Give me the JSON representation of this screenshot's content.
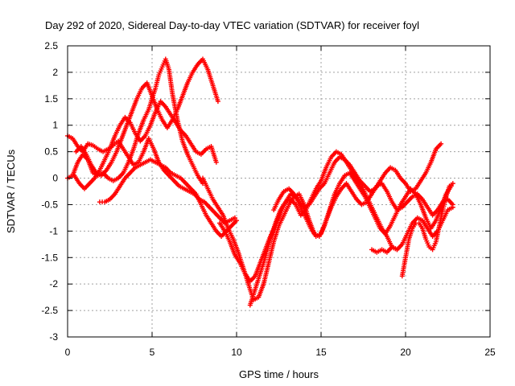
{
  "chart_data": {
    "type": "scatter",
    "title": "Day 292 of 2020, Sidereal Day-to-day VTEC variation (SDTVAR) for receiver foyl",
    "xlabel": "GPS time / hours",
    "ylabel": "SDTVAR / TECUs",
    "xlim": [
      0,
      25
    ],
    "ylim": [
      -3,
      2.5
    ],
    "x_ticks": [
      0,
      5,
      10,
      15,
      20,
      25
    ],
    "y_ticks": [
      2.5,
      2,
      1.5,
      1,
      0.5,
      0,
      -0.5,
      -1,
      -1.5,
      -2,
      -2.5,
      -3
    ],
    "x_tick_labels": [
      "0",
      "5",
      "10",
      "15",
      "20",
      "25"
    ],
    "y_tick_labels": [
      "2.5",
      "2",
      "1.5",
      "1",
      "0.5",
      "0",
      "-0.5",
      "-1",
      "-1.5",
      "-2",
      "-2.5",
      "-3"
    ],
    "grid": true,
    "marker": "plus",
    "color": "#ff0000",
    "series": [
      {
        "x": [
          0.0,
          0.3,
          0.6,
          0.9,
          1.2,
          1.5,
          1.8,
          2.1,
          2.4,
          2.7,
          3.0,
          3.3,
          3.6,
          3.9,
          4.2,
          4.5,
          4.8,
          5.1,
          5.4,
          5.7,
          6.0,
          6.3,
          6.6,
          6.9,
          7.2,
          7.5,
          7.8,
          8.1,
          8.4,
          8.7,
          9.0,
          9.3,
          9.6,
          9.9
        ],
        "y": [
          0.8,
          0.75,
          0.6,
          0.5,
          0.65,
          0.62,
          0.55,
          0.5,
          0.55,
          0.62,
          0.7,
          0.55,
          0.4,
          0.25,
          0.3,
          0.5,
          0.75,
          0.55,
          0.3,
          0.15,
          0.05,
          -0.05,
          -0.15,
          -0.2,
          -0.25,
          -0.3,
          -0.4,
          -0.45,
          -0.55,
          -0.65,
          -0.75,
          -0.85,
          -0.8,
          -0.75
        ]
      },
      {
        "x": [
          0.0,
          0.3,
          0.6,
          0.9,
          1.2,
          1.5,
          1.8,
          2.1,
          2.4,
          2.7,
          3.0,
          3.3,
          3.6,
          3.9,
          4.2,
          4.5,
          4.8,
          5.0,
          5.2,
          5.4,
          5.6,
          5.8,
          6.0,
          6.2,
          6.5,
          6.8,
          7.1,
          7.4,
          7.7,
          8.0
        ],
        "y": [
          0.0,
          0.05,
          0.3,
          0.45,
          0.35,
          0.1,
          0.05,
          0.1,
          0.0,
          -0.05,
          0.0,
          0.1,
          0.3,
          0.55,
          0.85,
          1.1,
          1.3,
          1.5,
          1.7,
          1.95,
          2.1,
          2.25,
          2.05,
          1.6,
          1.1,
          0.7,
          0.45,
          0.25,
          0.05,
          -0.1
        ]
      },
      {
        "x": [
          0.5,
          0.8,
          1.1,
          1.4,
          1.7,
          2.0,
          2.3,
          2.6,
          2.9,
          3.2,
          3.5,
          3.8,
          4.1,
          4.4,
          4.7,
          5.0,
          5.3,
          5.6,
          5.9,
          6.2,
          6.5,
          6.8,
          7.1,
          7.4,
          7.7,
          8.0,
          8.3,
          8.6,
          8.9
        ],
        "y": [
          0.5,
          0.6,
          0.45,
          0.25,
          0.1,
          0.05,
          0.15,
          0.3,
          0.5,
          0.75,
          1.0,
          1.25,
          1.5,
          1.7,
          1.8,
          1.55,
          1.3,
          1.1,
          0.95,
          1.1,
          1.3,
          1.55,
          1.8,
          2.0,
          2.15,
          2.25,
          2.05,
          1.75,
          1.45
        ]
      },
      {
        "x": [
          0.4,
          0.7,
          1.0,
          1.3,
          1.6,
          1.9,
          2.2,
          2.5,
          2.8,
          3.1,
          3.4,
          3.7,
          4.0,
          4.3,
          4.6,
          4.9,
          5.2,
          5.5,
          5.8,
          6.1,
          6.4,
          6.7,
          7.0,
          7.3,
          7.6,
          7.9,
          8.2,
          8.5,
          8.8
        ],
        "y": [
          0.05,
          -0.1,
          -0.2,
          -0.1,
          0.0,
          0.15,
          0.35,
          0.55,
          0.8,
          1.0,
          1.15,
          1.05,
          0.85,
          0.7,
          0.8,
          1.0,
          1.25,
          1.45,
          1.35,
          1.2,
          1.05,
          0.9,
          0.8,
          0.65,
          0.5,
          0.45,
          0.55,
          0.6,
          0.3
        ]
      },
      {
        "x": [
          1.9,
          2.2,
          2.5,
          2.8,
          3.1,
          3.4,
          3.7,
          4.0,
          4.3,
          4.6,
          4.9,
          5.2,
          5.5,
          5.8,
          6.1,
          6.4,
          6.7,
          7.0,
          7.3,
          7.6,
          7.9,
          8.2,
          8.5,
          8.8,
          9.1,
          9.4,
          9.7,
          10.0
        ],
        "y": [
          -0.45,
          -0.45,
          -0.4,
          -0.3,
          -0.15,
          0.0,
          0.1,
          0.2,
          0.25,
          0.3,
          0.35,
          0.3,
          0.25,
          0.2,
          0.1,
          0.05,
          0.0,
          -0.1,
          -0.2,
          -0.3,
          -0.5,
          -0.7,
          -0.85,
          -1.0,
          -1.1,
          -1.0,
          -0.9,
          -0.8
        ]
      },
      {
        "x": [
          8.0,
          8.3,
          8.6,
          8.9,
          9.2,
          9.5,
          9.8,
          10.1,
          10.4,
          10.7,
          11.0,
          11.3,
          11.6,
          11.9,
          12.2,
          12.5,
          12.8,
          13.1,
          13.4,
          13.7,
          14.0,
          14.3,
          14.6,
          14.9,
          15.2,
          15.5,
          15.8,
          16.1,
          16.4,
          16.7,
          17.0,
          17.3,
          17.6,
          17.9,
          18.2,
          18.5,
          18.8,
          19.1,
          19.4,
          19.7,
          20.0,
          20.3,
          20.6,
          20.9,
          21.2,
          21.5,
          21.8,
          22.1,
          22.4,
          22.7
        ],
        "y": [
          0.0,
          -0.2,
          -0.4,
          -0.55,
          -0.7,
          -0.95,
          -1.15,
          -1.4,
          -1.7,
          -2.0,
          -2.3,
          -2.25,
          -2.0,
          -1.6,
          -1.2,
          -0.9,
          -0.7,
          -0.5,
          -0.35,
          -0.3,
          -0.5,
          -0.8,
          -1.05,
          -1.1,
          -0.9,
          -0.6,
          -0.3,
          -0.1,
          0.05,
          0.1,
          -0.05,
          -0.2,
          -0.35,
          -0.55,
          -0.75,
          -0.95,
          -1.05,
          -0.9,
          -0.7,
          -0.5,
          -0.35,
          -0.2,
          -0.3,
          -0.5,
          -0.75,
          -0.95,
          -0.8,
          -0.55,
          -0.3,
          -0.15
        ]
      },
      {
        "x": [
          9.0,
          9.3,
          9.6,
          9.9,
          10.2,
          10.5,
          10.8,
          11.1,
          11.4,
          11.7,
          12.0,
          12.3,
          12.6,
          12.9,
          13.2,
          13.5,
          13.8,
          14.1,
          14.4,
          14.7,
          15.0,
          15.3,
          15.6,
          15.9,
          16.2,
          16.5,
          16.8,
          17.1,
          17.4,
          17.7,
          18.0,
          18.3,
          18.6,
          18.9,
          19.2,
          19.5,
          19.8,
          20.1,
          20.4,
          20.7,
          21.0,
          21.3,
          21.6,
          21.9,
          22.2,
          22.5,
          22.8
        ],
        "y": [
          -0.85,
          -1.0,
          -1.2,
          -1.45,
          -1.6,
          -1.8,
          -1.95,
          -1.85,
          -1.6,
          -1.35,
          -1.1,
          -0.9,
          -0.65,
          -0.45,
          -0.3,
          -0.35,
          -0.55,
          -0.75,
          -0.95,
          -1.1,
          -1.05,
          -0.8,
          -0.55,
          -0.35,
          -0.2,
          -0.1,
          -0.25,
          -0.4,
          -0.5,
          -0.45,
          -0.3,
          -0.15,
          -0.1,
          -0.25,
          -0.45,
          -0.6,
          -0.55,
          -0.45,
          -0.35,
          -0.3,
          -0.4,
          -0.55,
          -0.7,
          -0.6,
          -0.45,
          -0.4,
          -0.5
        ]
      },
      {
        "x": [
          10.8,
          11.1,
          11.4,
          11.7,
          12.0,
          12.3,
          12.6,
          12.9,
          13.2,
          13.5,
          13.8,
          14.1,
          14.4,
          14.7,
          15.0,
          15.3,
          15.6,
          15.9,
          16.2,
          16.5,
          16.8,
          17.1,
          17.4,
          17.7,
          18.0,
          18.3,
          18.6,
          18.9,
          19.2,
          19.5,
          19.8,
          20.1,
          20.4,
          20.7,
          21.0,
          21.3,
          21.6,
          21.9,
          22.2,
          22.5,
          22.8
        ],
        "y": [
          -2.4,
          -2.1,
          -1.8,
          -1.5,
          -1.15,
          -0.85,
          -0.6,
          -0.45,
          -0.4,
          -0.5,
          -0.7,
          -0.6,
          -0.4,
          -0.2,
          -0.05,
          0.2,
          0.4,
          0.5,
          0.45,
          0.3,
          0.15,
          0.0,
          -0.15,
          -0.35,
          -0.55,
          -0.75,
          -0.95,
          -1.1,
          -1.3,
          -1.35,
          -1.25,
          -1.05,
          -0.85,
          -0.75,
          -0.8,
          -0.95,
          -1.1,
          -1.0,
          -0.8,
          -0.6,
          -0.55
        ]
      },
      {
        "x": [
          12.2,
          12.5,
          12.8,
          13.1,
          13.4,
          13.7,
          14.0,
          14.3,
          14.6,
          14.9,
          15.2,
          15.5,
          15.8,
          16.1,
          16.4,
          16.7,
          17.0,
          17.3,
          17.6,
          17.9,
          18.2,
          18.5,
          18.8,
          19.1,
          19.4,
          19.7,
          20.0,
          20.3,
          20.6,
          20.9,
          21.2,
          21.5,
          21.8,
          22.1
        ],
        "y": [
          -0.6,
          -0.4,
          -0.25,
          -0.2,
          -0.3,
          -0.45,
          -0.55,
          -0.5,
          -0.35,
          -0.2,
          -0.1,
          0.1,
          0.3,
          0.4,
          0.35,
          0.25,
          0.1,
          -0.05,
          -0.15,
          -0.25,
          -0.2,
          -0.05,
          0.1,
          0.2,
          0.15,
          0.0,
          -0.1,
          -0.25,
          -0.2,
          -0.05,
          0.1,
          0.3,
          0.55,
          0.65
        ]
      },
      {
        "x": [
          18.0,
          18.3,
          18.6,
          18.9,
          19.2,
          19.5
        ],
        "y": [
          -1.35,
          -1.4,
          -1.35,
          -1.4,
          -1.3,
          -1.35
        ]
      },
      {
        "x": [
          19.8,
          20.0,
          20.2,
          20.4,
          20.6,
          20.8,
          21.0,
          21.2,
          21.4,
          21.6,
          21.8,
          22.0,
          22.2,
          22.4,
          22.6,
          22.8
        ],
        "y": [
          -1.85,
          -1.5,
          -1.15,
          -0.95,
          -0.85,
          -0.85,
          -0.95,
          -1.15,
          -1.3,
          -1.35,
          -1.2,
          -0.9,
          -0.6,
          -0.35,
          -0.15,
          -0.1
        ]
      }
    ]
  }
}
